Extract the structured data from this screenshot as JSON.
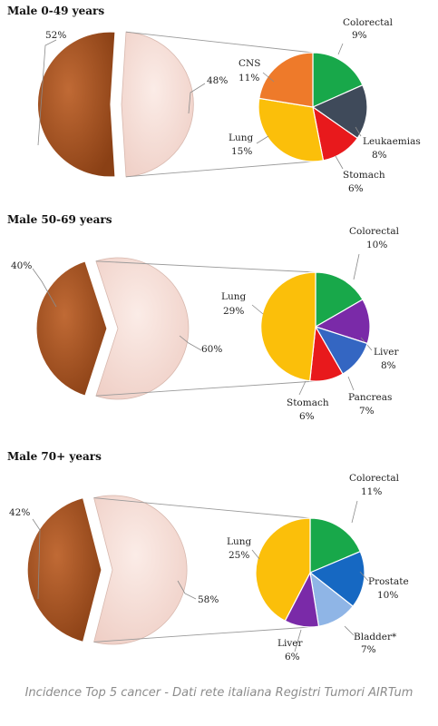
{
  "caption": "Incidence Top 5 cancer - Dati rete italiana Registri Tumori AIRTum",
  "colors": {
    "big_left": "#a0501e",
    "big_right": "#f6ddd6",
    "colorectal": "#18a84a",
    "leukaemias": "#3f4a5a",
    "stomach": "#e8191c",
    "lung": "#fbbf0a",
    "cns": "#ee7a2a",
    "liver": "#7a2aa8",
    "pancreas": "#3466c2",
    "prostate": "#1668c2",
    "bladder": "#8fb5e6"
  },
  "chart_data": [
    {
      "type": "pie",
      "title": "Male 0-49 years",
      "main": [
        {
          "label": "52%",
          "value": 52,
          "color_key": "big_left"
        },
        {
          "label": "48%",
          "value": 48,
          "color_key": "big_right"
        }
      ],
      "breakdown": [
        {
          "name": "Colorectal",
          "pct": "9%",
          "value": 9,
          "color_key": "colorectal"
        },
        {
          "name": "Leukaemias",
          "pct": "8%",
          "value": 8,
          "color_key": "leukaemias"
        },
        {
          "name": "Stomach",
          "pct": "6%",
          "value": 6,
          "color_key": "stomach"
        },
        {
          "name": "Lung",
          "pct": "15%",
          "value": 15,
          "color_key": "lung"
        },
        {
          "name": "CNS",
          "pct": "11%",
          "value": 11,
          "color_key": "cns"
        }
      ]
    },
    {
      "type": "pie",
      "title": "Male 50-69 years",
      "main": [
        {
          "label": "40%",
          "value": 40,
          "color_key": "big_left"
        },
        {
          "label": "60%",
          "value": 60,
          "color_key": "big_right"
        }
      ],
      "breakdown": [
        {
          "name": "Colorectal",
          "pct": "10%",
          "value": 10,
          "color_key": "colorectal"
        },
        {
          "name": "Liver",
          "pct": "8%",
          "value": 8,
          "color_key": "liver"
        },
        {
          "name": "Pancreas",
          "pct": "7%",
          "value": 7,
          "color_key": "pancreas"
        },
        {
          "name": "Stomach",
          "pct": "6%",
          "value": 6,
          "color_key": "stomach"
        },
        {
          "name": "Lung",
          "pct": "29%",
          "value": 29,
          "color_key": "lung"
        }
      ]
    },
    {
      "type": "pie",
      "title": "Male 70+ years",
      "main": [
        {
          "label": "42%",
          "value": 42,
          "color_key": "big_left"
        },
        {
          "label": "58%",
          "value": 58,
          "color_key": "big_right"
        }
      ],
      "breakdown": [
        {
          "name": "Colorectal",
          "pct": "11%",
          "value": 11,
          "color_key": "colorectal"
        },
        {
          "name": "Prostate",
          "pct": "10%",
          "value": 10,
          "color_key": "prostate"
        },
        {
          "name": "Bladder*",
          "pct": "7%",
          "value": 7,
          "color_key": "bladder"
        },
        {
          "name": "Liver",
          "pct": "6%",
          "value": 6,
          "color_key": "liver"
        },
        {
          "name": "Lung",
          "pct": "25%",
          "value": 25,
          "color_key": "lung"
        }
      ]
    }
  ]
}
